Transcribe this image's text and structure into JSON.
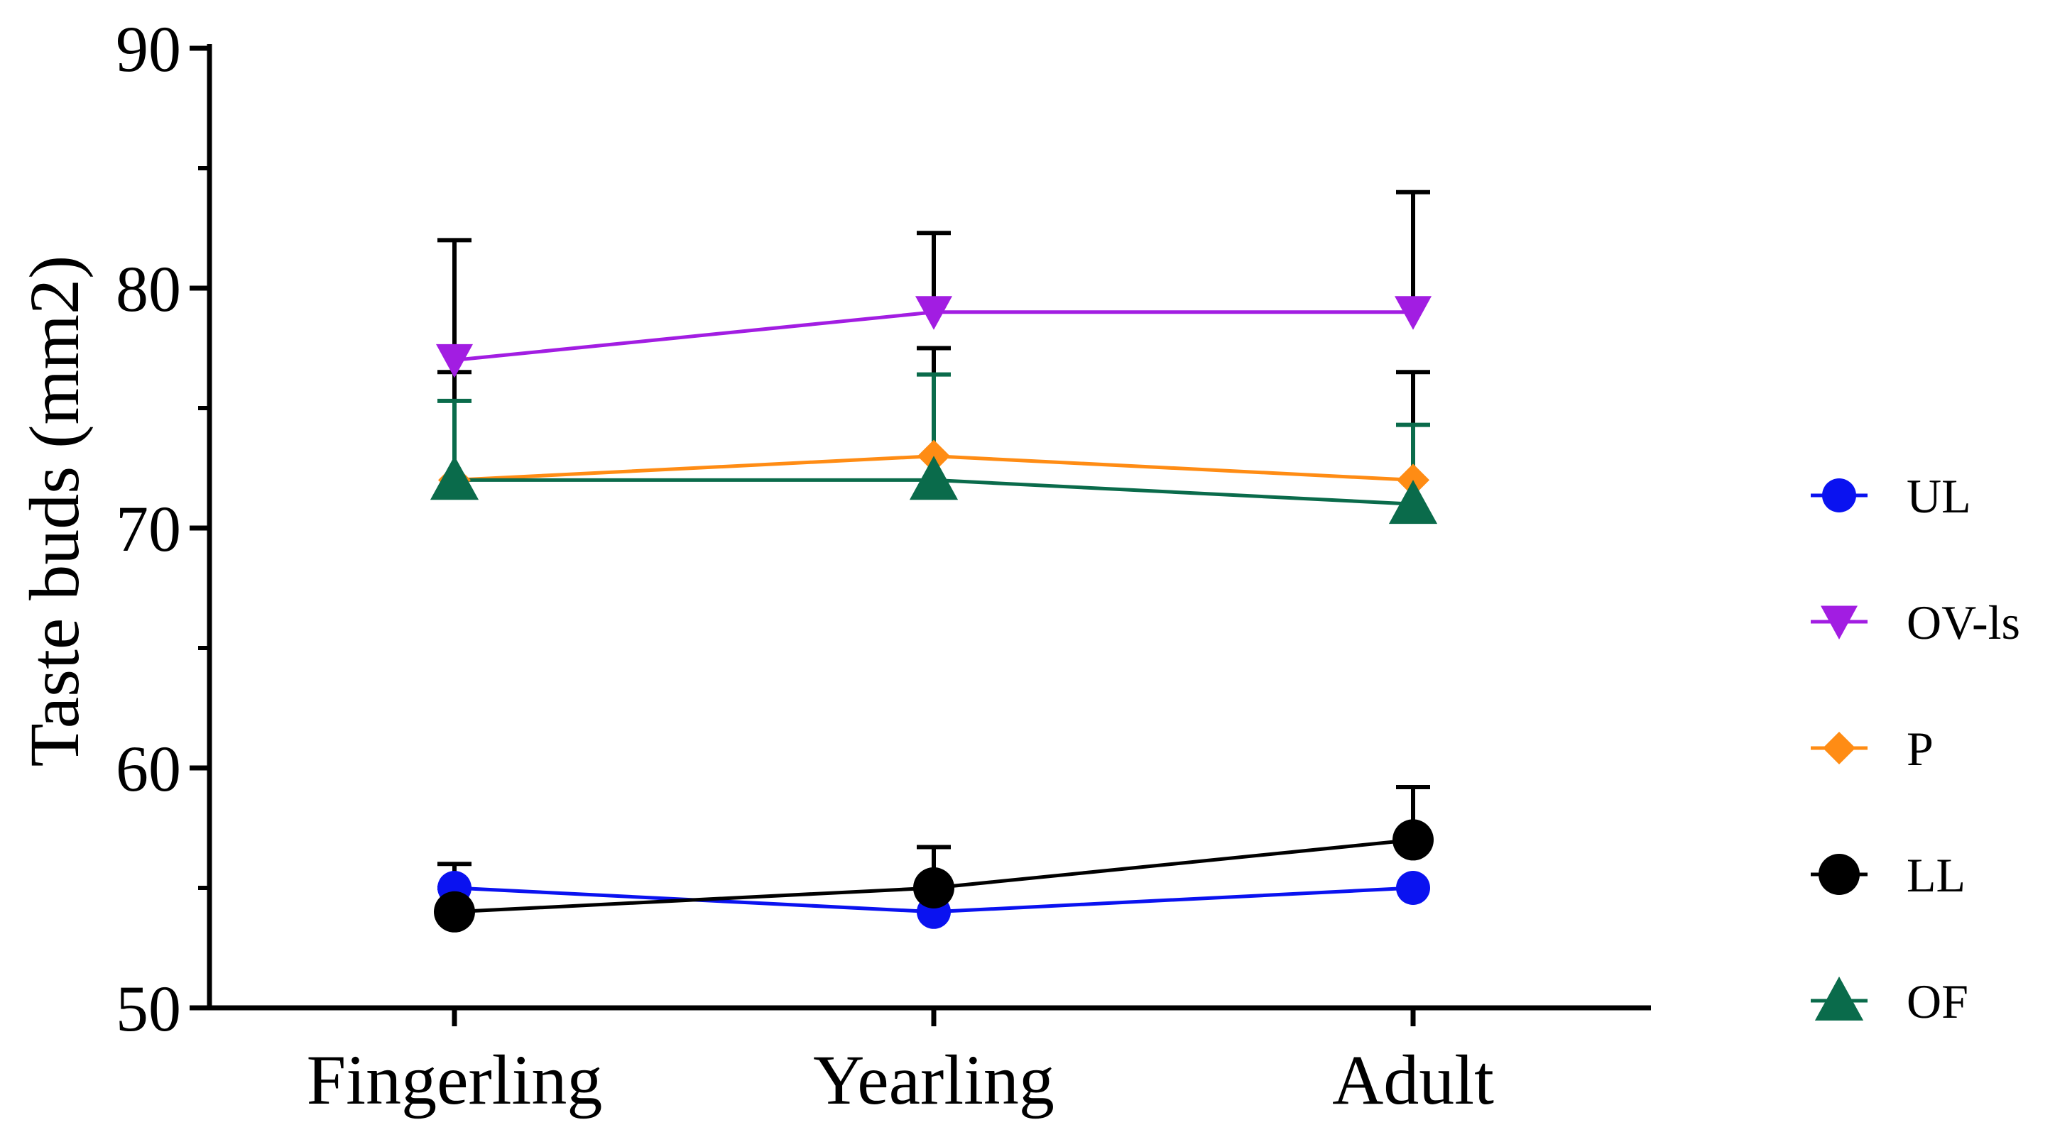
{
  "chart_data": {
    "type": "line",
    "title": "",
    "xlabel": "",
    "ylabel": "Taste buds (mm2)",
    "categories": [
      "Fingerling",
      "Yearling",
      "Adult"
    ],
    "ylim": [
      50,
      90
    ],
    "yticks": [
      50,
      60,
      70,
      80,
      90
    ],
    "legend_position": "right",
    "series": [
      {
        "name": "UL",
        "marker": "circle",
        "color": "#0a12f0",
        "values": [
          55,
          54,
          55
        ],
        "error": [
          1,
          0,
          0
        ]
      },
      {
        "name": "OV-ls",
        "marker": "triangle-down",
        "color": "#a21de2",
        "values": [
          77,
          79,
          79
        ],
        "error": [
          5,
          3.3,
          5
        ]
      },
      {
        "name": "P",
        "marker": "diamond",
        "color": "#ff8c14",
        "values": [
          72,
          73,
          72
        ],
        "error": [
          4.5,
          4.5,
          4.5
        ]
      },
      {
        "name": "LL",
        "marker": "circle",
        "color": "#000000",
        "values": [
          54,
          55,
          57
        ],
        "error": [
          1,
          1.7,
          2.2
        ]
      },
      {
        "name": "OF",
        "marker": "triangle-up",
        "color": "#0a6b4b",
        "values": [
          72,
          72,
          71
        ],
        "error": [
          3.3,
          4.4,
          3.3
        ]
      }
    ]
  }
}
